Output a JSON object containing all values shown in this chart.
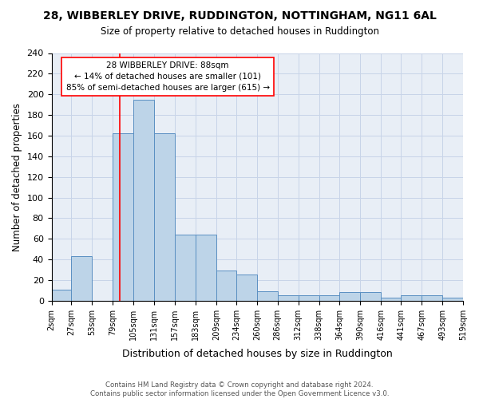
{
  "title": "28, WIBBERLEY DRIVE, RUDDINGTON, NOTTINGHAM, NG11 6AL",
  "subtitle": "Size of property relative to detached houses in Ruddington",
  "xlabel": "Distribution of detached houses by size in Ruddington",
  "ylabel": "Number of detached properties",
  "edges": [
    2,
    27,
    53,
    79,
    105,
    131,
    157,
    183,
    209,
    234,
    260,
    286,
    312,
    338,
    364,
    390,
    416,
    441,
    467,
    493,
    519
  ],
  "heights": [
    11,
    43,
    0,
    162,
    195,
    162,
    64,
    64,
    29,
    25,
    9,
    5,
    5,
    5,
    8,
    8,
    3,
    5,
    5,
    3
  ],
  "tick_labels": [
    "2sqm",
    "27sqm",
    "53sqm",
    "79sqm",
    "105sqm",
    "131sqm",
    "157sqm",
    "183sqm",
    "209sqm",
    "234sqm",
    "260sqm",
    "286sqm",
    "312sqm",
    "338sqm",
    "364sqm",
    "390sqm",
    "416sqm",
    "441sqm",
    "467sqm",
    "493sqm",
    "519sqm"
  ],
  "bar_color": "#bdd4e8",
  "bar_edge_color": "#5a8fc2",
  "grid_color": "#c8d4e8",
  "bg_color": "#e8eef6",
  "vline_x": 88,
  "vline_color": "red",
  "annotation_text": "28 WIBBERLEY DRIVE: 88sqm\n← 14% of detached houses are smaller (101)\n85% of semi-detached houses are larger (615) →",
  "footnote": "Contains HM Land Registry data © Crown copyright and database right 2024.\nContains public sector information licensed under the Open Government Licence v3.0.",
  "ylim": [
    0,
    240
  ],
  "yticks": [
    0,
    20,
    40,
    60,
    80,
    100,
    120,
    140,
    160,
    180,
    200,
    220,
    240
  ]
}
